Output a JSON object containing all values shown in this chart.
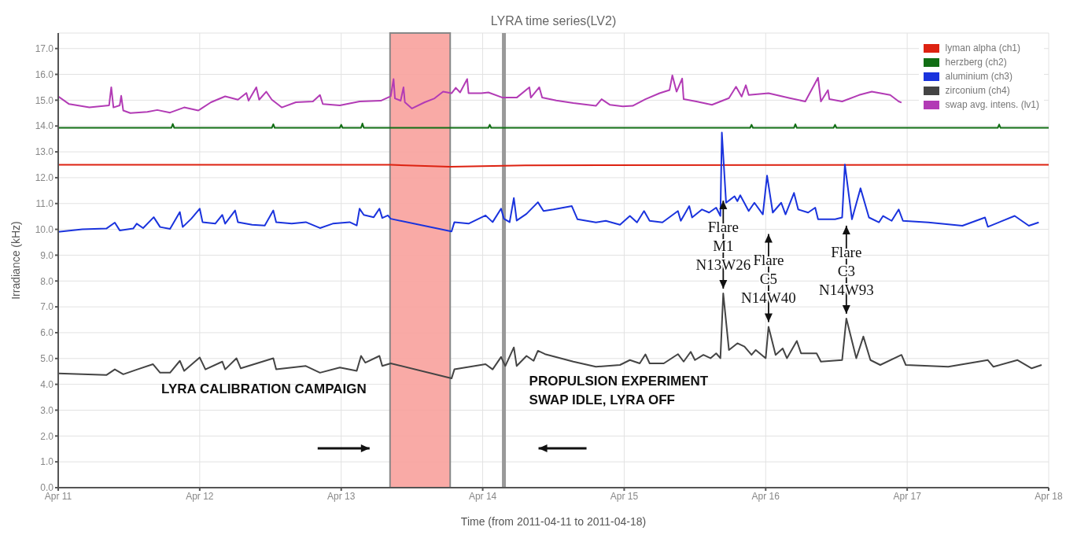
{
  "chart_data": {
    "type": "line",
    "title": "LYRA time series(LV2)",
    "xlabel": "Time (from 2011-04-11 to 2011-04-18)",
    "ylabel": "Irradiance (kHz)",
    "xlim": [
      "2011-04-11",
      "2011-04-18"
    ],
    "xticks": [
      {
        "value": "2011-04-11",
        "label": "Apr 11"
      },
      {
        "value": "2011-04-12",
        "label": "Apr 12"
      },
      {
        "value": "2011-04-13",
        "label": "Apr 13"
      },
      {
        "value": "2011-04-14",
        "label": "Apr 14"
      },
      {
        "value": "2011-04-15",
        "label": "Apr 15"
      },
      {
        "value": "2011-04-16",
        "label": "Apr 16"
      },
      {
        "value": "2011-04-17",
        "label": "Apr 17"
      },
      {
        "value": "2011-04-18",
        "label": "Apr 18"
      }
    ],
    "ylim": [
      0,
      17.6
    ],
    "yticks": [
      {
        "value": 0,
        "label": "0.0"
      },
      {
        "value": 1,
        "label": "1.0"
      },
      {
        "value": 2,
        "label": "2.0"
      },
      {
        "value": 3,
        "label": "3.0"
      },
      {
        "value": 4,
        "label": "4.0"
      },
      {
        "value": 5,
        "label": "5.0"
      },
      {
        "value": 6,
        "label": "6.0"
      },
      {
        "value": 7,
        "label": "7.0"
      },
      {
        "value": 8,
        "label": "8.0"
      },
      {
        "value": 9,
        "label": "9.0"
      },
      {
        "value": 10,
        "label": "10.0"
      },
      {
        "value": 11,
        "label": "11.0"
      },
      {
        "value": 12,
        "label": "12.0"
      },
      {
        "value": 13,
        "label": "13.0"
      },
      {
        "value": 14,
        "label": "14.0"
      },
      {
        "value": 15,
        "label": "15.0"
      },
      {
        "value": 16,
        "label": "16.0"
      },
      {
        "value": 17,
        "label": "17.0"
      }
    ],
    "grid": true,
    "legend": "top right",
    "series": [
      {
        "name": "lyman alpha (ch1)",
        "color": "#dd2211",
        "x": [
          "2011-04-11T00:00",
          "2011-04-13T08:24",
          "2011-04-13T18:29",
          "2011-04-14T07:12",
          "2011-04-18T00:00"
        ],
        "values": [
          12.5,
          12.5,
          12.42,
          12.48,
          12.5
        ]
      },
      {
        "name": "herzberg (ch2)",
        "color": "#116e14",
        "x": [
          "2011-04-11T00:00",
          "2011-04-11T19:12",
          "2011-04-11T19:26",
          "2011-04-11T19:41",
          "2011-04-12T12:14",
          "2011-04-12T12:29",
          "2011-04-12T12:43",
          "2011-04-12T23:46",
          "2011-04-13T00:00",
          "2011-04-13T00:14",
          "2011-04-13T03:22",
          "2011-04-13T03:36",
          "2011-04-13T03:50",
          "2011-04-14T00:58",
          "2011-04-14T01:12",
          "2011-04-14T01:26",
          "2011-04-15T21:22",
          "2011-04-15T21:36",
          "2011-04-15T21:50",
          "2011-04-16T04:48",
          "2011-04-16T05:02",
          "2011-04-16T05:17",
          "2011-04-16T11:31",
          "2011-04-16T11:46",
          "2011-04-16T12:00",
          "2011-04-17T15:22",
          "2011-04-17T15:36",
          "2011-04-17T15:50",
          "2011-04-18T00:00"
        ],
        "values": [
          13.93,
          13.93,
          14.08,
          13.93,
          13.93,
          14.07,
          13.93,
          13.93,
          14.05,
          13.93,
          13.93,
          14.1,
          13.93,
          13.93,
          14.05,
          13.93,
          13.93,
          14.05,
          13.93,
          13.93,
          14.07,
          13.93,
          13.93,
          14.05,
          13.93,
          13.93,
          14.06,
          13.93,
          13.93
        ]
      },
      {
        "name": "aluminium (ch3)",
        "color": "#1a33dd",
        "x": [
          "2011-04-11T00:00",
          "2011-04-11T04:05",
          "2011-04-11T08:10",
          "2011-04-11T09:36",
          "2011-04-11T10:26",
          "2011-04-11T12:43",
          "2011-04-11T13:19",
          "2011-04-11T14:24",
          "2011-04-11T16:12",
          "2011-04-11T17:17",
          "2011-04-11T18:58",
          "2011-04-11T20:38",
          "2011-04-11T21:07",
          "2011-04-11T22:34",
          "2011-04-12T00:00",
          "2011-04-12T00:29",
          "2011-04-12T02:38",
          "2011-04-12T03:50",
          "2011-04-12T04:19",
          "2011-04-12T06:00",
          "2011-04-12T06:29",
          "2011-04-12T08:53",
          "2011-04-12T11:02",
          "2011-04-12T12:29",
          "2011-04-12T12:58",
          "2011-04-12T15:36",
          "2011-04-12T18:00",
          "2011-04-12T20:24",
          "2011-04-12T22:34",
          "2011-04-13T01:26",
          "2011-04-13T02:38",
          "2011-04-13T03:07",
          "2011-04-13T03:50",
          "2011-04-13T05:31",
          "2011-04-13T06:29",
          "2011-04-13T06:58",
          "2011-04-13T07:55",
          "2011-04-13T08:24",
          "2011-04-13T18:43",
          "2011-04-13T19:12",
          "2011-04-13T21:36",
          "2011-04-14T00:29",
          "2011-04-14T01:41",
          "2011-04-14T03:07",
          "2011-04-14T03:36",
          "2011-04-14T04:34",
          "2011-04-14T05:17",
          "2011-04-14T05:46",
          "2011-04-14T07:26",
          "2011-04-14T09:22",
          "2011-04-14T10:19",
          "2011-04-14T12:00",
          "2011-04-14T15:07",
          "2011-04-14T16:05",
          "2011-04-14T19:12",
          "2011-04-14T20:53",
          "2011-04-14T23:17",
          "2011-04-15T00:58",
          "2011-04-15T02:10",
          "2011-04-15T03:22",
          "2011-04-15T04:19",
          "2011-04-15T06:29",
          "2011-04-15T09:07",
          "2011-04-15T09:36",
          "2011-04-15T11:02",
          "2011-04-15T11:31",
          "2011-04-15T13:12",
          "2011-04-15T14:24",
          "2011-04-15T15:36",
          "2011-04-15T16:19",
          "2011-04-15T16:34",
          "2011-04-15T17:17",
          "2011-04-15T18:43",
          "2011-04-15T19:12",
          "2011-04-15T19:41",
          "2011-04-15T21:07",
          "2011-04-15T22:05",
          "2011-04-15T23:31",
          "2011-04-16T00:14",
          "2011-04-16T01:12",
          "2011-04-16T02:38",
          "2011-04-16T03:22",
          "2011-04-16T04:48",
          "2011-04-16T05:31",
          "2011-04-16T07:12",
          "2011-04-16T08:24",
          "2011-04-16T08:53",
          "2011-04-16T11:46",
          "2011-04-16T12:58",
          "2011-04-16T13:26",
          "2011-04-16T14:38",
          "2011-04-16T16:05",
          "2011-04-16T17:31",
          "2011-04-16T19:12",
          "2011-04-16T19:55",
          "2011-04-16T21:22",
          "2011-04-16T22:34",
          "2011-04-16T23:17",
          "2011-04-17T03:36",
          "2011-04-17T09:22",
          "2011-04-17T13:12",
          "2011-04-17T13:41",
          "2011-04-17T18:14",
          "2011-04-17T20:38",
          "2011-04-17T22:19"
        ],
        "values": [
          9.9,
          10,
          10.03,
          10.26,
          9.96,
          10.03,
          10.22,
          10.05,
          10.47,
          10.09,
          10.02,
          10.67,
          10.09,
          10.41,
          10.8,
          10.28,
          10.22,
          10.56,
          10.22,
          10.73,
          10.28,
          10.18,
          10.15,
          10.73,
          10.28,
          10.22,
          10.28,
          10.05,
          10.22,
          10.28,
          10.15,
          10.8,
          10.56,
          10.47,
          10.8,
          10.44,
          10.54,
          10.41,
          9.92,
          10.28,
          10.22,
          10.54,
          10.28,
          10.8,
          10.41,
          10.28,
          11.21,
          10.34,
          10.6,
          11.05,
          10.71,
          10.77,
          10.9,
          10.39,
          10.27,
          10.33,
          10.18,
          10.52,
          10.27,
          10.71,
          10.33,
          10.27,
          10.71,
          10.33,
          10.9,
          10.46,
          10.77,
          10.65,
          10.84,
          10.52,
          13.75,
          11.03,
          11.28,
          11.09,
          11.32,
          10.71,
          11.03,
          10.58,
          12.08,
          10.65,
          11.03,
          10.58,
          11.41,
          10.77,
          10.65,
          10.84,
          10.39,
          10.39,
          10.46,
          12.51,
          10.39,
          11.59,
          10.46,
          10.27,
          10.52,
          10.33,
          10.77,
          10.33,
          10.27,
          10.14,
          10.46,
          10.1,
          10.52,
          10.14,
          10.27
        ]
      },
      {
        "name": "zirconium (ch4)",
        "color": "#444444",
        "x": [
          "2011-04-11T00:00",
          "2011-04-11T08:10",
          "2011-04-11T09:36",
          "2011-04-11T11:02",
          "2011-04-11T13:26",
          "2011-04-11T16:05",
          "2011-04-11T17:17",
          "2011-04-11T18:58",
          "2011-04-11T20:38",
          "2011-04-11T21:22",
          "2011-04-12T00:00",
          "2011-04-12T00:58",
          "2011-04-12T03:50",
          "2011-04-12T04:19",
          "2011-04-12T06:14",
          "2011-04-12T06:58",
          "2011-04-12T12:29",
          "2011-04-12T12:58",
          "2011-04-12T18:00",
          "2011-04-12T20:24",
          "2011-04-12T23:46",
          "2011-04-13T02:38",
          "2011-04-13T03:22",
          "2011-04-13T04:05",
          "2011-04-13T06:29",
          "2011-04-13T06:58",
          "2011-04-13T08:24",
          "2011-04-13T18:43",
          "2011-04-13T19:12",
          "2011-04-14T00:29",
          "2011-04-14T01:41",
          "2011-04-14T03:07",
          "2011-04-14T03:50",
          "2011-04-14T05:17",
          "2011-04-14T05:46",
          "2011-04-14T07:26",
          "2011-04-14T08:38",
          "2011-04-14T09:22",
          "2011-04-14T10:34",
          "2011-04-14T15:22",
          "2011-04-14T19:12",
          "2011-04-14T23:17",
          "2011-04-15T00:58",
          "2011-04-15T02:38",
          "2011-04-15T03:36",
          "2011-04-15T04:19",
          "2011-04-15T06:43",
          "2011-04-15T09:07",
          "2011-04-15T10:05",
          "2011-04-15T11:17",
          "2011-04-15T12:00",
          "2011-04-15T13:26",
          "2011-04-15T14:38",
          "2011-04-15T15:36",
          "2011-04-15T16:19",
          "2011-04-15T16:48",
          "2011-04-15T17:46",
          "2011-04-15T19:12",
          "2011-04-15T20:24",
          "2011-04-15T21:36",
          "2011-04-15T22:19",
          "2011-04-16T00:00",
          "2011-04-16T00:29",
          "2011-04-16T01:41",
          "2011-04-16T02:53",
          "2011-04-16T03:36",
          "2011-04-16T05:17",
          "2011-04-16T06:00",
          "2011-04-16T08:38",
          "2011-04-16T09:22",
          "2011-04-16T12:58",
          "2011-04-16T13:41",
          "2011-04-16T15:22",
          "2011-04-16T16:34",
          "2011-04-16T17:46",
          "2011-04-16T19:26",
          "2011-04-16T23:02",
          "2011-04-16T23:46",
          "2011-04-17T06:58",
          "2011-04-17T13:41",
          "2011-04-17T14:38",
          "2011-04-17T18:43",
          "2011-04-17T21:07",
          "2011-04-17T22:48"
        ],
        "values": [
          4.42,
          4.36,
          4.58,
          4.39,
          4.58,
          4.78,
          4.45,
          4.45,
          4.91,
          4.52,
          5.04,
          4.58,
          4.88,
          4.58,
          5.01,
          4.62,
          5.01,
          4.58,
          4.71,
          4.45,
          4.65,
          4.52,
          5.1,
          4.84,
          5.1,
          4.71,
          4.81,
          4.23,
          4.58,
          4.78,
          4.58,
          5.06,
          4.71,
          5.43,
          4.71,
          5.1,
          4.91,
          5.3,
          5.17,
          4.88,
          4.68,
          4.75,
          4.94,
          4.81,
          5.16,
          4.81,
          4.81,
          5.17,
          4.88,
          5.26,
          4.94,
          5.14,
          5.01,
          5.2,
          5.01,
          7.52,
          5.33,
          5.59,
          5.46,
          5.14,
          5.33,
          5.01,
          6.23,
          5.14,
          5.39,
          5.01,
          5.68,
          5.2,
          5.2,
          4.88,
          4.94,
          6.55,
          5.01,
          5.85,
          4.94,
          4.75,
          5.14,
          4.75,
          4.68,
          4.94,
          4.68,
          4.94,
          4.62,
          4.75
        ]
      },
      {
        "name": "swap avg. intens. (lv1)",
        "color": "#b23bb5",
        "x": [
          "2011-04-11T00:00",
          "2011-04-11T01:51",
          "2011-04-11T05:17",
          "2011-04-11T08:38",
          "2011-04-11T09:00",
          "2011-04-11T09:22",
          "2011-04-11T10:26",
          "2011-04-11T10:41",
          "2011-04-11T11:02",
          "2011-04-11T12:14",
          "2011-04-11T15:07",
          "2011-04-11T16:48",
          "2011-04-11T18:58",
          "2011-04-11T21:22",
          "2011-04-11T23:46",
          "2011-04-12T01:55",
          "2011-04-12T04:19",
          "2011-04-12T06:29",
          "2011-04-12T07:55",
          "2011-04-12T08:17",
          "2011-04-12T09:36",
          "2011-04-12T10:05",
          "2011-04-12T11:17",
          "2011-04-12T12:14",
          "2011-04-12T13:55",
          "2011-04-12T16:19",
          "2011-04-12T19:12",
          "2011-04-12T20:24",
          "2011-04-12T20:53",
          "2011-04-12T23:46",
          "2011-04-13T03:07",
          "2011-04-13T06:43",
          "2011-04-13T08:24",
          "2011-04-13T08:53",
          "2011-04-13T09:07",
          "2011-04-13T10:05",
          "2011-04-13T10:34",
          "2011-04-13T10:48",
          "2011-04-13T12:00",
          "2011-04-13T14:10",
          "2011-04-13T15:50",
          "2011-04-13T17:17",
          "2011-04-13T18:43",
          "2011-04-13T19:26",
          "2011-04-13T20:10",
          "2011-04-13T21:22",
          "2011-04-13T21:36",
          "2011-04-13T23:46",
          "2011-04-14T00:58",
          "2011-04-14T03:22",
          "2011-04-14T05:46",
          "2011-04-14T07:55",
          "2011-04-14T08:10",
          "2011-04-14T09:36",
          "2011-04-14T10:05",
          "2011-04-14T12:29",
          "2011-04-14T15:22",
          "2011-04-14T19:12",
          "2011-04-14T20:10",
          "2011-04-14T21:36",
          "2011-04-14T23:46",
          "2011-04-15T01:26",
          "2011-04-15T03:36",
          "2011-04-15T06:00",
          "2011-04-15T07:41",
          "2011-04-15T08:10",
          "2011-04-15T08:53",
          "2011-04-15T09:50",
          "2011-04-15T10:05",
          "2011-04-15T12:14",
          "2011-04-15T14:53",
          "2011-04-15T17:46",
          "2011-04-15T18:58",
          "2011-04-15T19:55",
          "2011-04-15T20:38",
          "2011-04-15T21:07",
          "2011-04-16T00:29",
          "2011-04-16T04:05",
          "2011-04-16T06:43",
          "2011-04-16T08:53",
          "2011-04-16T09:22",
          "2011-04-16T10:34",
          "2011-04-16T10:48",
          "2011-04-16T12:58",
          "2011-04-16T15:50",
          "2011-04-16T18:00",
          "2011-04-16T21:07",
          "2011-04-16T22:34",
          "2011-04-16T23:02"
        ],
        "values": [
          15.15,
          14.85,
          14.72,
          14.8,
          15.5,
          14.72,
          14.8,
          15.17,
          14.6,
          14.5,
          14.55,
          14.62,
          14.52,
          14.72,
          14.6,
          14.92,
          15.15,
          15.02,
          15.28,
          14.98,
          15.5,
          15.02,
          15.33,
          15.02,
          14.72,
          14.92,
          14.95,
          15.2,
          14.85,
          14.8,
          14.95,
          14.98,
          15.15,
          15.82,
          15.07,
          14.98,
          15.5,
          14.92,
          14.68,
          14.92,
          15.07,
          15.33,
          15.27,
          15.48,
          15.3,
          15.82,
          15.27,
          15.27,
          15.3,
          15.1,
          15.1,
          15.5,
          15.1,
          15.5,
          15.1,
          14.99,
          14.89,
          14.78,
          15.04,
          14.82,
          14.76,
          14.78,
          15.04,
          15.27,
          15.39,
          15.96,
          15.33,
          15.84,
          15.04,
          14.95,
          14.82,
          15.08,
          15.52,
          15.14,
          15.58,
          15.2,
          15.27,
          15.08,
          14.95,
          15.87,
          14.95,
          15.39,
          15.04,
          14.95,
          15.2,
          15.33,
          15.2,
          14.95,
          14.91
        ]
      }
    ],
    "bands": [
      {
        "axis": "x",
        "from": "2011-04-13T08:17",
        "to": "2011-04-13T18:29",
        "label": "LYRA CALIBRATION CAMPAIGN",
        "color": "#f8a19c"
      }
    ],
    "ref_lines": [
      {
        "axis": "x",
        "value": "2011-04-14T03:36",
        "label": "PROPULSION EXPERIMENT\nSWAP IDLE, LYRA OFF",
        "color": "#999999"
      }
    ],
    "annotations": [
      {
        "text": "Flare\nM1\nN13W26",
        "x": "2011-04-15T16:48",
        "y": 7.52
      },
      {
        "text": "Flare\nC5\nN14W40",
        "x": "2011-04-16T00:29",
        "y": 6.23
      },
      {
        "text": "Flare\nC3\nN14W93",
        "x": "2011-04-16T13:41",
        "y": 6.55
      }
    ]
  }
}
